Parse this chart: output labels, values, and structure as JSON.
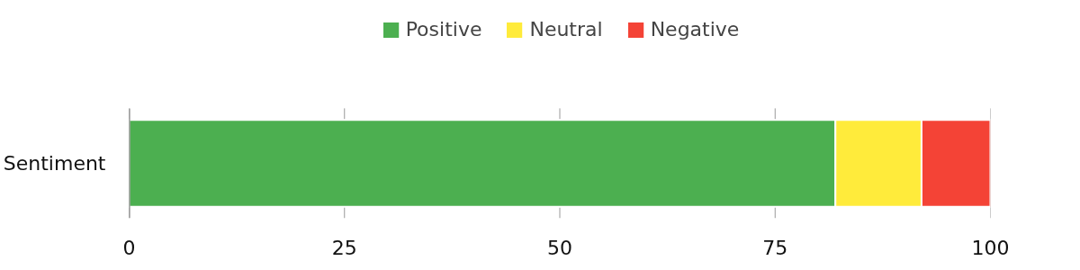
{
  "chart_data": {
    "type": "bar",
    "orientation": "horizontal",
    "stacked": true,
    "categories": [
      "Sentiment"
    ],
    "series": [
      {
        "name": "Positive",
        "color": "#4caf50",
        "values": [
          82
        ]
      },
      {
        "name": "Neutral",
        "color": "#ffeb3b",
        "values": [
          10
        ]
      },
      {
        "name": "Negative",
        "color": "#f44336",
        "values": [
          8
        ]
      }
    ],
    "xlim": [
      0,
      100
    ],
    "xticks": [
      0,
      25,
      50,
      75,
      100
    ],
    "grid": "x",
    "legend": "top"
  }
}
